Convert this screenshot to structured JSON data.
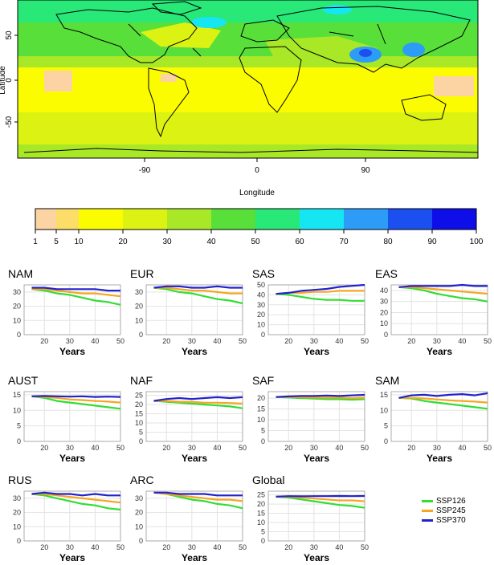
{
  "map": {
    "ylabel": "Latitude",
    "xlabel": "Longitude",
    "xticks": [
      "-90",
      "0",
      "90"
    ],
    "yticks": [
      "50",
      "0",
      "-50"
    ]
  },
  "colorbar": {
    "ticks": [
      "1",
      "5",
      "10",
      "20",
      "30",
      "40",
      "50",
      "60",
      "70",
      "80",
      "90",
      "100"
    ],
    "colors": [
      "#fcd3a3",
      "#fcdd68",
      "#fcfc00",
      "#dcf212",
      "#a8e826",
      "#58df3a",
      "#28e878",
      "#16e6f2",
      "#2c9cf6",
      "#1c4ff0",
      "#0e0fe8",
      "#5414e4"
    ]
  },
  "legend": {
    "items": [
      {
        "label": "SSP126",
        "color": "#33dd33"
      },
      {
        "label": "SSP245",
        "color": "#f5a623"
      },
      {
        "label": "SSP370",
        "color": "#2222cc"
      }
    ]
  },
  "chart_data": [
    {
      "type": "line",
      "title": "NAM",
      "xlabel": "Years",
      "xlim": [
        12,
        50
      ],
      "ylim": [
        0,
        35
      ],
      "yticks": [
        0,
        10,
        20,
        30
      ],
      "xticks": [
        20,
        30,
        40,
        50
      ],
      "x": [
        15,
        20,
        25,
        30,
        35,
        40,
        45,
        50
      ],
      "series": [
        {
          "name": "SSP126",
          "values": [
            32,
            31,
            29,
            28,
            26,
            24,
            23,
            21
          ]
        },
        {
          "name": "SSP245",
          "values": [
            32,
            32,
            31,
            30,
            29,
            29,
            28,
            27
          ]
        },
        {
          "name": "SSP370",
          "values": [
            33,
            33,
            32,
            32,
            32,
            32,
            31,
            31
          ]
        }
      ]
    },
    {
      "type": "line",
      "title": "EUR",
      "xlabel": "Years",
      "xlim": [
        12,
        50
      ],
      "ylim": [
        0,
        35
      ],
      "yticks": [
        0,
        10,
        20,
        30
      ],
      "xticks": [
        20,
        30,
        40,
        50
      ],
      "x": [
        15,
        20,
        25,
        30,
        35,
        40,
        45,
        50
      ],
      "series": [
        {
          "name": "SSP126",
          "values": [
            33,
            32,
            30,
            29,
            27,
            25,
            24,
            22
          ]
        },
        {
          "name": "SSP245",
          "values": [
            33,
            33,
            32,
            31,
            31,
            30,
            29,
            29
          ]
        },
        {
          "name": "SSP370",
          "values": [
            33,
            34,
            34,
            33,
            33,
            34,
            33,
            33
          ]
        }
      ]
    },
    {
      "type": "line",
      "title": "SAS",
      "xlabel": "Years",
      "xlim": [
        12,
        50
      ],
      "ylim": [
        0,
        50
      ],
      "yticks": [
        0,
        10,
        20,
        30,
        40,
        50
      ],
      "xticks": [
        20,
        30,
        40,
        50
      ],
      "x": [
        15,
        20,
        25,
        30,
        35,
        40,
        45,
        50
      ],
      "series": [
        {
          "name": "SSP126",
          "values": [
            41,
            40,
            38,
            36,
            35,
            35,
            34,
            34
          ]
        },
        {
          "name": "SSP245",
          "values": [
            41,
            42,
            42,
            43,
            43,
            44,
            44,
            44
          ]
        },
        {
          "name": "SSP370",
          "values": [
            41,
            42,
            44,
            45,
            46,
            48,
            49,
            50
          ]
        }
      ]
    },
    {
      "type": "line",
      "title": "EAS",
      "xlabel": "Years",
      "xlim": [
        12,
        50
      ],
      "ylim": [
        0,
        45
      ],
      "yticks": [
        0,
        10,
        20,
        30,
        40
      ],
      "xticks": [
        20,
        30,
        40,
        50
      ],
      "x": [
        15,
        20,
        25,
        30,
        35,
        40,
        45,
        50
      ],
      "series": [
        {
          "name": "SSP126",
          "values": [
            43,
            42,
            40,
            37,
            35,
            33,
            32,
            30
          ]
        },
        {
          "name": "SSP245",
          "values": [
            43,
            43,
            42,
            41,
            40,
            39,
            38,
            37
          ]
        },
        {
          "name": "SSP370",
          "values": [
            43,
            44,
            44,
            44,
            44,
            45,
            44,
            44
          ]
        }
      ]
    },
    {
      "type": "line",
      "title": "AUST",
      "xlabel": "Years",
      "xlim": [
        12,
        50
      ],
      "ylim": [
        0,
        16
      ],
      "yticks": [
        0,
        5,
        10,
        15
      ],
      "xticks": [
        20,
        30,
        40,
        50
      ],
      "x": [
        15,
        20,
        25,
        30,
        35,
        40,
        45,
        50
      ],
      "series": [
        {
          "name": "SSP126",
          "values": [
            14.5,
            14,
            13,
            12.5,
            12,
            11.5,
            11,
            10.5
          ]
        },
        {
          "name": "SSP245",
          "values": [
            14.5,
            14.3,
            14,
            13.5,
            13.3,
            13,
            12.8,
            12.5
          ]
        },
        {
          "name": "SSP370",
          "values": [
            14.5,
            14.6,
            14.5,
            14.4,
            14.5,
            14.3,
            14.4,
            14.3
          ]
        }
      ]
    },
    {
      "type": "line",
      "title": "NAF",
      "xlabel": "Years",
      "xlim": [
        12,
        50
      ],
      "ylim": [
        0,
        27
      ],
      "yticks": [
        0,
        5,
        10,
        15,
        20,
        25
      ],
      "xticks": [
        20,
        30,
        40,
        50
      ],
      "x": [
        15,
        20,
        25,
        30,
        35,
        40,
        45,
        50
      ],
      "series": [
        {
          "name": "SSP126",
          "values": [
            22,
            21.5,
            21,
            20.5,
            20,
            19.5,
            19,
            18
          ]
        },
        {
          "name": "SSP245",
          "values": [
            22,
            22,
            21.5,
            21.5,
            21,
            21,
            20.8,
            20.5
          ]
        },
        {
          "name": "SSP370",
          "values": [
            22,
            23,
            23.5,
            23,
            23.5,
            24,
            23.5,
            24
          ]
        }
      ]
    },
    {
      "type": "line",
      "title": "SAF",
      "xlabel": "Years",
      "xlim": [
        12,
        50
      ],
      "ylim": [
        0,
        23
      ],
      "yticks": [
        0,
        5,
        10,
        15,
        20
      ],
      "xticks": [
        20,
        30,
        40,
        50
      ],
      "x": [
        15,
        20,
        25,
        30,
        35,
        40,
        45,
        50
      ],
      "series": [
        {
          "name": "SSP126",
          "values": [
            20.5,
            20.3,
            20,
            19.8,
            19.5,
            19.5,
            19.3,
            19.5
          ]
        },
        {
          "name": "SSP245",
          "values": [
            20.5,
            20.5,
            20.4,
            20.3,
            20.2,
            20.3,
            20,
            20.2
          ]
        },
        {
          "name": "SSP370",
          "values": [
            20.5,
            20.8,
            21,
            21,
            21.2,
            21,
            21.3,
            21.5
          ]
        }
      ]
    },
    {
      "type": "line",
      "title": "SAM",
      "xlabel": "Years",
      "xlim": [
        12,
        50
      ],
      "ylim": [
        0,
        16
      ],
      "yticks": [
        0,
        5,
        10,
        15
      ],
      "xticks": [
        20,
        30,
        40,
        50
      ],
      "x": [
        15,
        20,
        25,
        30,
        35,
        40,
        45,
        50
      ],
      "series": [
        {
          "name": "SSP126",
          "values": [
            14,
            13.8,
            13,
            12.5,
            12,
            11.5,
            11,
            10.5
          ]
        },
        {
          "name": "SSP245",
          "values": [
            14,
            14,
            13.8,
            13.5,
            13.2,
            13,
            12.8,
            12.5
          ]
        },
        {
          "name": "SSP370",
          "values": [
            14,
            14.8,
            15,
            14.6,
            15,
            15.2,
            14.8,
            15.5
          ]
        }
      ]
    },
    {
      "type": "line",
      "title": "RUS",
      "xlabel": "Years",
      "xlim": [
        12,
        50
      ],
      "ylim": [
        0,
        35
      ],
      "yticks": [
        0,
        10,
        20,
        30
      ],
      "xticks": [
        20,
        30,
        40,
        50
      ],
      "x": [
        15,
        20,
        25,
        30,
        35,
        40,
        45,
        50
      ],
      "series": [
        {
          "name": "SSP126",
          "values": [
            33,
            32,
            30,
            28,
            26,
            25,
            23,
            22
          ]
        },
        {
          "name": "SSP245",
          "values": [
            33,
            33,
            32,
            31,
            30,
            29,
            28,
            27
          ]
        },
        {
          "name": "SSP370",
          "values": [
            33,
            34,
            33,
            33,
            32,
            33,
            32,
            32
          ]
        }
      ]
    },
    {
      "type": "line",
      "title": "ARC",
      "xlabel": "Years",
      "xlim": [
        12,
        50
      ],
      "ylim": [
        0,
        35
      ],
      "yticks": [
        0,
        10,
        20,
        30
      ],
      "xticks": [
        20,
        30,
        40,
        50
      ],
      "x": [
        15,
        20,
        25,
        30,
        35,
        40,
        45,
        50
      ],
      "series": [
        {
          "name": "SSP126",
          "values": [
            34,
            33,
            31,
            29,
            28,
            26,
            25,
            23
          ]
        },
        {
          "name": "SSP245",
          "values": [
            34,
            33,
            32,
            31,
            30,
            29,
            29,
            28
          ]
        },
        {
          "name": "SSP370",
          "values": [
            34,
            34,
            33,
            33,
            33,
            32,
            32,
            32
          ]
        }
      ]
    },
    {
      "type": "line",
      "title": "Global",
      "xlabel": "Years",
      "xlim": [
        12,
        50
      ],
      "ylim": [
        0,
        27
      ],
      "yticks": [
        0,
        5,
        10,
        15,
        20,
        25
      ],
      "xticks": [
        20,
        30,
        40,
        50
      ],
      "x": [
        15,
        20,
        25,
        30,
        35,
        40,
        45,
        50
      ],
      "series": [
        {
          "name": "SSP126",
          "values": [
            24,
            23.5,
            22.5,
            21.5,
            20.5,
            19.5,
            19,
            18
          ]
        },
        {
          "name": "SSP245",
          "values": [
            24,
            24,
            23.5,
            23,
            22.5,
            22,
            22,
            21.5
          ]
        },
        {
          "name": "SSP370",
          "values": [
            24,
            24.3,
            24.2,
            24.3,
            24.3,
            24.4,
            24.3,
            24.4
          ]
        }
      ]
    }
  ]
}
